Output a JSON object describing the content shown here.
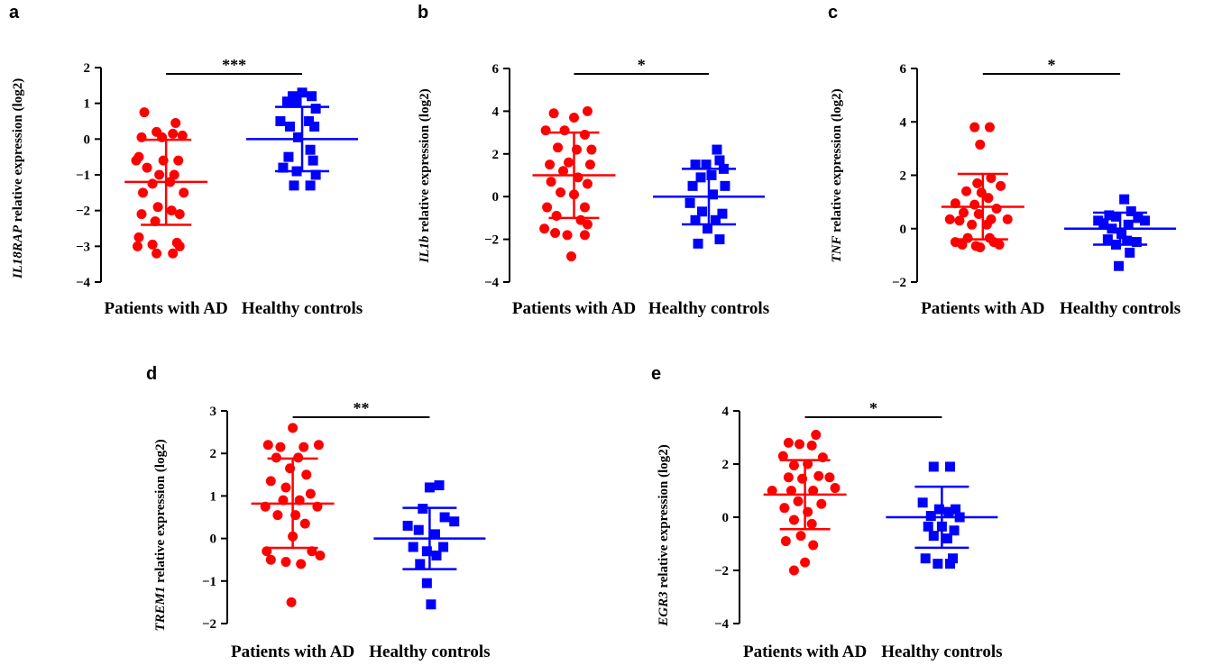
{
  "chart_data": [
    {
      "type": "scatter",
      "panel": "a",
      "gene": "IL18RAP",
      "ylabel_rest": " relative expression (log2)",
      "yticks": [
        2,
        1,
        0,
        -1,
        -2,
        -3,
        -4
      ],
      "ylim": [
        -4,
        2
      ],
      "categories": [
        "Patients with AD",
        "Healthy controls"
      ],
      "significance": "***",
      "colors": {
        "patients": "#ff0000",
        "controls": "#0000ff"
      },
      "series": [
        {
          "group": "Patients with AD",
          "marker": "circle",
          "mean": -1.2,
          "sd_low": -2.4,
          "sd_high": -0.02,
          "points": [
            [
              -0.16,
              0.75
            ],
            [
              0.07,
              0.45
            ],
            [
              -0.07,
              0.2
            ],
            [
              0.05,
              0.15
            ],
            [
              -0.18,
              0.05
            ],
            [
              -0.03,
              0.05
            ],
            [
              0.12,
              0.1
            ],
            [
              -0.2,
              -0.5
            ],
            [
              -0.22,
              -0.6
            ],
            [
              -0.02,
              -0.6
            ],
            [
              0.09,
              -0.6
            ],
            [
              -0.14,
              -0.8
            ],
            [
              -0.05,
              -1.0
            ],
            [
              0.06,
              -1.0
            ],
            [
              -0.1,
              -1.25
            ],
            [
              0.03,
              -1.2
            ],
            [
              -0.17,
              -1.5
            ],
            [
              0.13,
              -1.5
            ],
            [
              -0.06,
              -1.9
            ],
            [
              -0.18,
              -2.1
            ],
            [
              0.04,
              -2.0
            ],
            [
              0.1,
              -2.1
            ],
            [
              -0.08,
              -2.3
            ],
            [
              -0.2,
              -2.75
            ],
            [
              -0.1,
              -2.95
            ],
            [
              0.08,
              -2.9
            ],
            [
              -0.21,
              -3.0
            ],
            [
              0.1,
              -3.0
            ],
            [
              -0.07,
              -3.2
            ],
            [
              0.05,
              -3.2
            ]
          ]
        },
        {
          "group": "Healthy controls",
          "marker": "square",
          "mean": 0.0,
          "sd_low": -0.9,
          "sd_high": 0.9,
          "points": [
            [
              0,
              1.3
            ],
            [
              -0.07,
              1.2
            ],
            [
              0.07,
              1.2
            ],
            [
              -0.11,
              1.05
            ],
            [
              -0.04,
              1.05
            ],
            [
              0.1,
              0.85
            ],
            [
              -0.16,
              0.5
            ],
            [
              0.05,
              0.5
            ],
            [
              -0.09,
              0.35
            ],
            [
              0.09,
              0.35
            ],
            [
              -0.03,
              0.05
            ],
            [
              0.06,
              -0.3
            ],
            [
              -0.1,
              -0.5
            ],
            [
              0.08,
              -0.6
            ],
            [
              -0.14,
              -0.8
            ],
            [
              -0.04,
              -0.9
            ],
            [
              0.1,
              -1.0
            ],
            [
              -0.06,
              -1.3
            ],
            [
              0.06,
              -1.3
            ]
          ]
        }
      ]
    },
    {
      "type": "scatter",
      "panel": "b",
      "gene": "IL1b",
      "ylabel_rest": " relative expression (log2)",
      "yticks": [
        6,
        4,
        2,
        0,
        -2,
        -4
      ],
      "ylim": [
        -4,
        6
      ],
      "categories": [
        "Patients with AD",
        "Healthy controls"
      ],
      "significance": "*",
      "colors": {
        "patients": "#ff0000",
        "controls": "#0000ff"
      },
      "series": [
        {
          "group": "Patients with AD",
          "marker": "circle",
          "mean": 1.0,
          "sd_low": -1.0,
          "sd_high": 3.0,
          "points": [
            [
              -0.15,
              3.9
            ],
            [
              0,
              3.7
            ],
            [
              0.1,
              4.0
            ],
            [
              -0.21,
              3.1
            ],
            [
              -0.07,
              3.1
            ],
            [
              0.08,
              2.9
            ],
            [
              -0.12,
              2.3
            ],
            [
              0.02,
              2.2
            ],
            [
              0.13,
              2.2
            ],
            [
              -0.18,
              1.5
            ],
            [
              -0.04,
              1.6
            ],
            [
              0.12,
              1.5
            ],
            [
              -0.08,
              1.2
            ],
            [
              0.03,
              0.9
            ],
            [
              -0.17,
              0.7
            ],
            [
              0.1,
              0.6
            ],
            [
              -0.1,
              0.2
            ],
            [
              0,
              0.1
            ],
            [
              -0.2,
              -0.5
            ],
            [
              0.08,
              -0.5
            ],
            [
              -0.13,
              -0.9
            ],
            [
              0.05,
              -1.1
            ],
            [
              -0.22,
              -1.5
            ],
            [
              0.1,
              -1.3
            ],
            [
              -0.14,
              -1.7
            ],
            [
              -0.05,
              -1.8
            ],
            [
              0.08,
              -1.8
            ],
            [
              -0.02,
              -2.8
            ]
          ]
        },
        {
          "group": "Healthy controls",
          "marker": "square",
          "mean": 0.0,
          "sd_low": -1.3,
          "sd_high": 1.3,
          "points": [
            [
              0.06,
              2.2
            ],
            [
              -0.1,
              1.5
            ],
            [
              0.08,
              1.7
            ],
            [
              -0.02,
              1.5
            ],
            [
              0.11,
              1.3
            ],
            [
              -0.06,
              0.9
            ],
            [
              0.02,
              1.0
            ],
            [
              -0.12,
              0.5
            ],
            [
              0.12,
              0.5
            ],
            [
              0.03,
              0.1
            ],
            [
              -0.14,
              -0.3
            ],
            [
              -0.05,
              -0.7
            ],
            [
              0.1,
              -0.8
            ],
            [
              -0.1,
              -1.1
            ],
            [
              0.05,
              -1.1
            ],
            [
              -0.01,
              -1.5
            ],
            [
              -0.08,
              -2.2
            ],
            [
              0.08,
              -2.0
            ]
          ]
        }
      ]
    },
    {
      "type": "scatter",
      "panel": "c",
      "gene": "TNF",
      "ylabel_rest": " relative expression (log2)",
      "yticks": [
        6,
        4,
        2,
        0,
        -2
      ],
      "ylim": [
        -2,
        6
      ],
      "categories": [
        "Patients with AD",
        "Healthy controls"
      ],
      "significance": "*",
      "colors": {
        "patients": "#ff0000",
        "controls": "#0000ff"
      },
      "series": [
        {
          "group": "Patients with AD",
          "marker": "circle",
          "mean": 0.82,
          "sd_low": -0.4,
          "sd_high": 2.05,
          "points": [
            [
              -0.06,
              3.8
            ],
            [
              0.05,
              3.8
            ],
            [
              -0.02,
              3.15
            ],
            [
              0.06,
              1.9
            ],
            [
              -0.04,
              1.7
            ],
            [
              0.13,
              1.6
            ],
            [
              -0.12,
              1.4
            ],
            [
              -0.01,
              1.35
            ],
            [
              0.04,
              1.15
            ],
            [
              -0.2,
              0.95
            ],
            [
              -0.06,
              0.9
            ],
            [
              0.1,
              0.75
            ],
            [
              -0.14,
              0.6
            ],
            [
              -0.03,
              0.55
            ],
            [
              0.06,
              0.35
            ],
            [
              0.18,
              0.35
            ],
            [
              -0.24,
              0.35
            ],
            [
              -0.17,
              0.3
            ],
            [
              -0.08,
              0.15
            ],
            [
              0.03,
              0.15
            ],
            [
              -0.11,
              -0.35
            ],
            [
              0.05,
              -0.35
            ],
            [
              -0.2,
              -0.5
            ],
            [
              0.08,
              -0.5
            ],
            [
              -0.05,
              -0.65
            ],
            [
              -0.15,
              -0.6
            ],
            [
              0.12,
              -0.6
            ],
            [
              -0.02,
              -0.7
            ]
          ]
        },
        {
          "group": "Healthy controls",
          "marker": "square",
          "mean": 0.0,
          "sd_low": -0.6,
          "sd_high": 0.6,
          "points": [
            [
              0.03,
              1.1
            ],
            [
              -0.08,
              0.5
            ],
            [
              0.08,
              0.65
            ],
            [
              -0.03,
              0.45
            ],
            [
              0.13,
              0.4
            ],
            [
              -0.16,
              0.3
            ],
            [
              0.18,
              0.3
            ],
            [
              -0.12,
              0.2
            ],
            [
              0.06,
              0.15
            ],
            [
              -0.06,
              0.0
            ],
            [
              0.01,
              -0.2
            ],
            [
              -0.09,
              -0.4
            ],
            [
              0.05,
              -0.45
            ],
            [
              0.12,
              -0.5
            ],
            [
              -0.03,
              -0.6
            ],
            [
              0.07,
              -0.9
            ],
            [
              -0.01,
              -1.4
            ]
          ]
        }
      ]
    },
    {
      "type": "scatter",
      "panel": "d",
      "gene": "TREM1",
      "ylabel_rest": " relative expression (log2)",
      "yticks": [
        3,
        2,
        1,
        0,
        -1,
        -2
      ],
      "ylim": [
        -2,
        3
      ],
      "categories": [
        "Patients with AD",
        "Healthy controls"
      ],
      "significance": "**",
      "colors": {
        "patients": "#ff0000",
        "controls": "#0000ff"
      },
      "series": [
        {
          "group": "Patients with AD",
          "marker": "circle",
          "mean": 0.82,
          "sd_low": -0.22,
          "sd_high": 1.88,
          "points": [
            [
              0,
              2.6
            ],
            [
              -0.18,
              2.2
            ],
            [
              -0.09,
              2.15
            ],
            [
              0.08,
              2.15
            ],
            [
              0.19,
              2.2
            ],
            [
              -0.12,
              1.9
            ],
            [
              0.04,
              1.9
            ],
            [
              -0.02,
              1.65
            ],
            [
              0.1,
              1.5
            ],
            [
              -0.16,
              1.35
            ],
            [
              -0.05,
              1.2
            ],
            [
              0.13,
              1.05
            ],
            [
              -0.07,
              0.9
            ],
            [
              0.05,
              0.9
            ],
            [
              -0.2,
              0.75
            ],
            [
              0.18,
              0.75
            ],
            [
              -0.11,
              0.55
            ],
            [
              0.02,
              0.55
            ],
            [
              0.09,
              0.35
            ],
            [
              0,
              0.05
            ],
            [
              -0.19,
              -0.3
            ],
            [
              0.14,
              -0.3
            ],
            [
              0.2,
              -0.4
            ],
            [
              -0.16,
              -0.5
            ],
            [
              -0.05,
              -0.55
            ],
            [
              0.06,
              -0.6
            ],
            [
              -0.01,
              -1.5
            ]
          ]
        },
        {
          "group": "Healthy controls",
          "marker": "square",
          "mean": 0.0,
          "sd_low": -0.72,
          "sd_high": 0.72,
          "points": [
            [
              0.07,
              1.25
            ],
            [
              0.0,
              1.2
            ],
            [
              -0.05,
              0.7
            ],
            [
              0.11,
              0.5
            ],
            [
              -0.16,
              0.3
            ],
            [
              0.18,
              0.4
            ],
            [
              -0.08,
              0.2
            ],
            [
              0.04,
              0.1
            ],
            [
              -0.12,
              -0.2
            ],
            [
              0.1,
              -0.2
            ],
            [
              -0.02,
              -0.3
            ],
            [
              0.05,
              -0.4
            ],
            [
              -0.07,
              -0.6
            ],
            [
              -0.02,
              -1.05
            ],
            [
              0.01,
              -1.55
            ]
          ]
        }
      ]
    },
    {
      "type": "scatter",
      "panel": "e",
      "gene": "EGR3",
      "ylabel_rest": " relative expression (log2)",
      "yticks": [
        4,
        2,
        0,
        -2,
        -4
      ],
      "ylim": [
        -4,
        4
      ],
      "categories": [
        "Patients with AD",
        "Healthy controls"
      ],
      "significance": "*",
      "colors": {
        "patients": "#ff0000",
        "controls": "#0000ff"
      },
      "series": [
        {
          "group": "Patients with AD",
          "marker": "circle",
          "mean": 0.85,
          "sd_low": -0.45,
          "sd_high": 2.15,
          "points": [
            [
              0.08,
              3.1
            ],
            [
              -0.12,
              2.8
            ],
            [
              -0.04,
              2.75
            ],
            [
              0.05,
              2.7
            ],
            [
              -0.16,
              2.3
            ],
            [
              0.13,
              2.25
            ],
            [
              -0.08,
              1.95
            ],
            [
              0.02,
              2.0
            ],
            [
              -0.12,
              1.5
            ],
            [
              0.1,
              1.55
            ],
            [
              -0.02,
              1.45
            ],
            [
              0.18,
              1.5
            ],
            [
              -0.24,
              1.0
            ],
            [
              -0.1,
              1.0
            ],
            [
              0.06,
              1.0
            ],
            [
              0.22,
              1.1
            ],
            [
              -0.05,
              0.6
            ],
            [
              0.12,
              0.5
            ],
            [
              -0.15,
              0.35
            ],
            [
              0.02,
              0.2
            ],
            [
              -0.08,
              -0.1
            ],
            [
              0.05,
              -0.25
            ],
            [
              -0.03,
              -0.7
            ],
            [
              -0.14,
              -0.9
            ],
            [
              0.06,
              -1.05
            ],
            [
              0,
              -1.7
            ],
            [
              -0.08,
              -2.0
            ]
          ]
        },
        {
          "group": "Healthy controls",
          "marker": "square",
          "mean": 0.0,
          "sd_low": -1.15,
          "sd_high": 1.15,
          "points": [
            [
              -0.06,
              1.9
            ],
            [
              0.06,
              1.9
            ],
            [
              -0.14,
              0.55
            ],
            [
              0.1,
              0.3
            ],
            [
              -0.02,
              0.3
            ],
            [
              0.05,
              0.2
            ],
            [
              -0.08,
              0.05
            ],
            [
              0.13,
              0.0
            ],
            [
              -0.1,
              -0.35
            ],
            [
              0.0,
              -0.35
            ],
            [
              0.09,
              -0.5
            ],
            [
              -0.06,
              -0.7
            ],
            [
              0.04,
              -0.8
            ],
            [
              -0.12,
              -1.55
            ],
            [
              0.08,
              -1.55
            ],
            [
              -0.03,
              -1.75
            ],
            [
              0.06,
              -1.75
            ]
          ]
        }
      ]
    }
  ]
}
